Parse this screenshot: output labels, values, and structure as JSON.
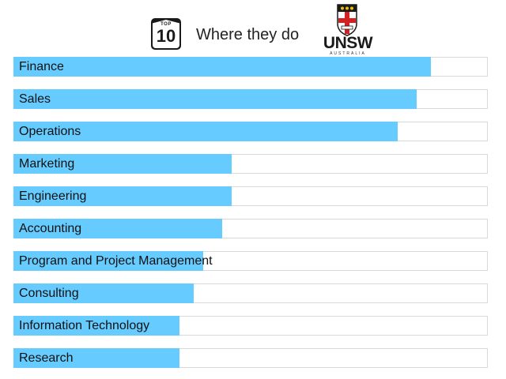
{
  "header": {
    "badge_top": "TOP",
    "badge_number": "10",
    "title": "Where they do",
    "logo_text": "UNSW",
    "logo_subtext": "AUSTRALIA"
  },
  "colors": {
    "bar": "#66ccff",
    "track_border": "#d9d9d9"
  },
  "chart_data": {
    "type": "bar",
    "orientation": "horizontal",
    "title": "Where they do",
    "categories": [
      "Finance",
      "Sales",
      "Operations",
      "Marketing",
      "Engineering",
      "Accounting",
      "Program and Project Management",
      "Consulting",
      "Information Technology",
      "Research"
    ],
    "values": [
      88,
      85,
      81,
      46,
      46,
      44,
      40,
      38,
      35,
      35
    ],
    "xlim": [
      0,
      100
    ],
    "grid": false,
    "legend": "none"
  }
}
